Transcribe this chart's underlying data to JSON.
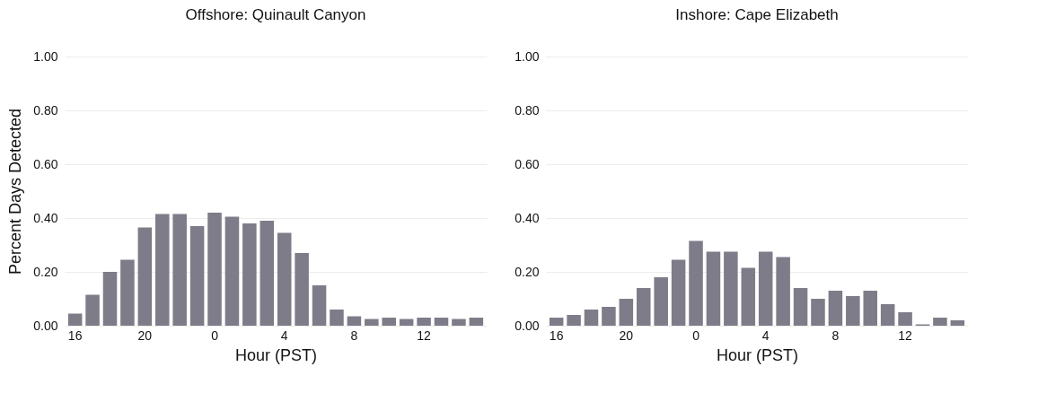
{
  "chart_data": [
    {
      "type": "bar",
      "title": "Offshore: Quinault Canyon",
      "xlabel": "Hour (PST)",
      "ylabel": "Percent Days Detected",
      "categories": [
        "16",
        null,
        null,
        null,
        "20",
        null,
        null,
        null,
        "0",
        null,
        null,
        null,
        "4",
        null,
        null,
        null,
        "8",
        null,
        null,
        null,
        "12",
        null,
        null,
        null
      ],
      "values": [
        0.045,
        0.115,
        0.2,
        0.245,
        0.365,
        0.415,
        0.415,
        0.37,
        0.42,
        0.405,
        0.38,
        0.39,
        0.345,
        0.27,
        0.15,
        0.06,
        0.035,
        0.025,
        0.03,
        0.025,
        0.03,
        0.03,
        0.025,
        0.03
      ],
      "color": "#7f7c89",
      "ylim": [
        0,
        1
      ],
      "yticks": [
        {
          "value": 0,
          "label": "0.00"
        },
        {
          "value": 0.2,
          "label": "0.20"
        },
        {
          "value": 0.4,
          "label": "0.40"
        },
        {
          "value": 0.6,
          "label": "0.60"
        },
        {
          "value": 0.8,
          "label": "0.80"
        },
        {
          "value": 1,
          "label": "1.00"
        }
      ],
      "grid": "y"
    },
    {
      "type": "bar",
      "title": "Inshore: Cape Elizabeth",
      "xlabel": "Hour (PST)",
      "categories": [
        "16",
        null,
        null,
        null,
        "20",
        null,
        null,
        null,
        "0",
        null,
        null,
        null,
        "4",
        null,
        null,
        null,
        "8",
        null,
        null,
        null,
        "12",
        null,
        null,
        null
      ],
      "values": [
        0.03,
        0.04,
        0.06,
        0.07,
        0.1,
        0.14,
        0.18,
        0.245,
        0.315,
        0.275,
        0.275,
        0.215,
        0.275,
        0.255,
        0.14,
        0.1,
        0.13,
        0.11,
        0.13,
        0.08,
        0.05,
        0.005,
        0.03,
        0.02
      ],
      "color": "#7f7c89",
      "ylim": [
        0,
        1
      ],
      "yticks": [
        {
          "value": 0,
          "label": "0.00"
        },
        {
          "value": 0.2,
          "label": "0.20"
        },
        {
          "value": 0.4,
          "label": "0.40"
        },
        {
          "value": 0.6,
          "label": "0.60"
        },
        {
          "value": 0.8,
          "label": "0.80"
        },
        {
          "value": 1,
          "label": "1.00"
        }
      ],
      "grid": "y"
    }
  ]
}
